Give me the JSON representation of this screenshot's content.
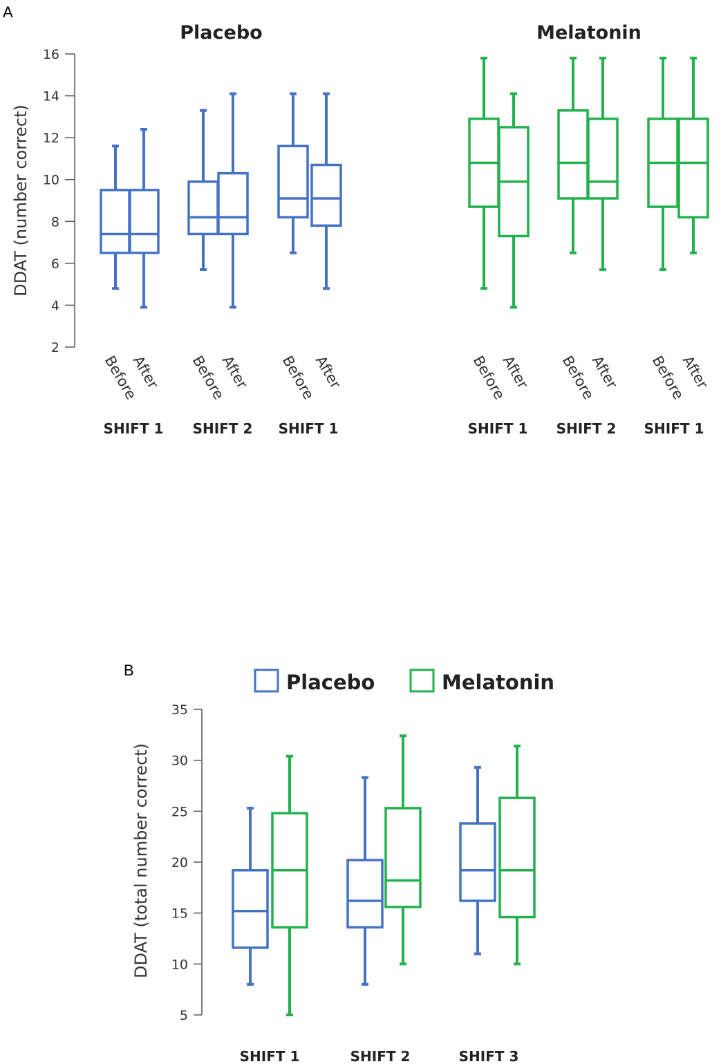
{
  "chart_data": [
    {
      "panel": "A",
      "type": "boxplot",
      "ylabel": "DDAT (number correct)",
      "ylim": [
        2,
        16
      ],
      "yticks": [
        2,
        4,
        6,
        8,
        10,
        12,
        14,
        16
      ],
      "groups": [
        {
          "title": "Placebo",
          "color": "#4472c4",
          "shift_labels": [
            "SHIFT 1",
            "SHIFT 2",
            "SHIFT 1"
          ],
          "boxes": [
            {
              "label": "Before",
              "min": 4.8,
              "q1": 6.5,
              "median": 7.4,
              "q3": 9.5,
              "max": 11.6
            },
            {
              "label": "After",
              "min": 3.9,
              "q1": 6.5,
              "median": 7.4,
              "q3": 9.5,
              "max": 12.4
            },
            {
              "label": "Before",
              "min": 5.7,
              "q1": 7.4,
              "median": 8.2,
              "q3": 9.9,
              "max": 13.3
            },
            {
              "label": "After",
              "min": 3.9,
              "q1": 7.4,
              "median": 8.2,
              "q3": 10.3,
              "max": 14.1
            },
            {
              "label": "Before",
              "min": 6.5,
              "q1": 8.2,
              "median": 9.1,
              "q3": 11.6,
              "max": 14.1
            },
            {
              "label": "After",
              "min": 4.8,
              "q1": 7.8,
              "median": 9.1,
              "q3": 10.7,
              "max": 14.1
            }
          ]
        },
        {
          "title": "Melatonin",
          "color": "#22b14c",
          "shift_labels": [
            "SHIFT 1",
            "SHIFT 2",
            "SHIFT 1"
          ],
          "boxes": [
            {
              "label": "Before",
              "min": 4.8,
              "q1": 8.7,
              "median": 10.8,
              "q3": 12.9,
              "max": 15.8
            },
            {
              "label": "After",
              "min": 3.9,
              "q1": 7.3,
              "median": 9.9,
              "q3": 12.5,
              "max": 14.1
            },
            {
              "label": "Before",
              "min": 6.5,
              "q1": 9.1,
              "median": 10.8,
              "q3": 13.3,
              "max": 15.8
            },
            {
              "label": "After",
              "min": 5.7,
              "q1": 9.1,
              "median": 9.9,
              "q3": 12.9,
              "max": 15.8
            },
            {
              "label": "Before",
              "min": 5.7,
              "q1": 8.7,
              "median": 10.8,
              "q3": 12.9,
              "max": 15.8
            },
            {
              "label": "After",
              "min": 6.5,
              "q1": 8.2,
              "median": 10.8,
              "q3": 12.9,
              "max": 15.8
            }
          ]
        }
      ]
    },
    {
      "panel": "B",
      "type": "boxplot",
      "ylabel": "DDAT (total number correct)",
      "ylim": [
        5,
        35
      ],
      "yticks": [
        5,
        10,
        15,
        20,
        25,
        30,
        35
      ],
      "legend": [
        {
          "name": "Placebo",
          "color": "#4472c4"
        },
        {
          "name": "Melatonin",
          "color": "#22b14c"
        }
      ],
      "categories": [
        "SHIFT 1",
        "SHIFT 2",
        "SHIFT 3"
      ],
      "series": [
        {
          "name": "Placebo",
          "color": "#4472c4",
          "boxes": [
            {
              "min": 8.0,
              "q1": 11.6,
              "median": 15.2,
              "q3": 19.2,
              "max": 25.3
            },
            {
              "min": 8.0,
              "q1": 13.6,
              "median": 16.2,
              "q3": 20.2,
              "max": 28.3
            },
            {
              "min": 11.0,
              "q1": 16.2,
              "median": 19.2,
              "q3": 23.8,
              "max": 29.3
            }
          ]
        },
        {
          "name": "Melatonin",
          "color": "#22b14c",
          "boxes": [
            {
              "min": 5.0,
              "q1": 13.6,
              "median": 19.2,
              "q3": 24.8,
              "max": 30.4
            },
            {
              "min": 10.0,
              "q1": 15.6,
              "median": 18.2,
              "q3": 25.3,
              "max": 32.4
            },
            {
              "min": 10.0,
              "q1": 14.6,
              "median": 19.2,
              "q3": 26.3,
              "max": 31.4
            }
          ]
        }
      ]
    }
  ]
}
